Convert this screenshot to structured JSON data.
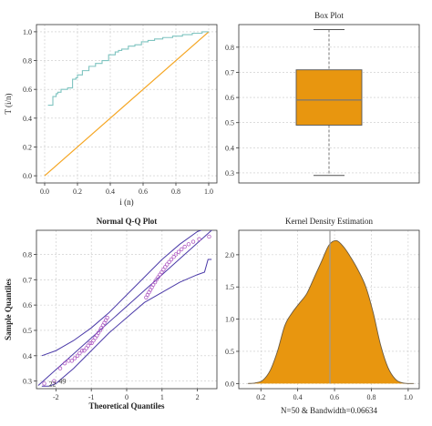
{
  "chart_data": [
    {
      "type": "line",
      "panel": "ttt",
      "xlabel": "i (n)",
      "ylabel": "T (i/n)",
      "xlim": [
        -0.05,
        1.05
      ],
      "ylim": [
        -0.05,
        1.05
      ],
      "xticks": [
        "0.0",
        "0.2",
        "0.4",
        "0.6",
        "0.8",
        "1.0"
      ],
      "yticks": [
        "0.0",
        "0.2",
        "0.4",
        "0.6",
        "0.8",
        "1.0"
      ],
      "grid": true,
      "colors": {
        "curve": "#7fc4c0",
        "diagonal": "#f5a623"
      },
      "series": [
        {
          "role": "curve",
          "x": [
            0.02,
            0.04,
            0.05,
            0.07,
            0.08,
            0.09,
            0.1,
            0.12,
            0.14,
            0.15,
            0.17,
            0.19,
            0.2,
            0.21,
            0.23,
            0.25,
            0.27,
            0.29,
            0.31,
            0.33,
            0.35,
            0.37,
            0.39,
            0.41,
            0.43,
            0.45,
            0.47,
            0.49,
            0.51,
            0.53,
            0.55,
            0.57,
            0.59,
            0.61,
            0.63,
            0.65,
            0.67,
            0.69,
            0.72,
            0.75,
            0.78,
            0.81,
            0.84,
            0.87,
            0.9,
            0.93,
            0.96,
            0.98,
            1.0
          ],
          "y": [
            0.49,
            0.49,
            0.55,
            0.57,
            0.58,
            0.58,
            0.6,
            0.6,
            0.61,
            0.61,
            0.67,
            0.68,
            0.7,
            0.7,
            0.73,
            0.73,
            0.76,
            0.76,
            0.78,
            0.78,
            0.8,
            0.8,
            0.84,
            0.84,
            0.86,
            0.87,
            0.88,
            0.88,
            0.9,
            0.9,
            0.91,
            0.91,
            0.93,
            0.93,
            0.94,
            0.94,
            0.95,
            0.95,
            0.96,
            0.96,
            0.97,
            0.97,
            0.98,
            0.98,
            0.99,
            0.99,
            1.0,
            1.0,
            1.0
          ]
        },
        {
          "role": "diagonal",
          "x": [
            0,
            1
          ],
          "y": [
            0,
            1
          ]
        }
      ]
    },
    {
      "type": "box",
      "panel": "box",
      "title": "Box Plot",
      "ylim": [
        0.26,
        0.89
      ],
      "yticks": [
        "0.3",
        "0.4",
        "0.5",
        "0.6",
        "0.7",
        "0.8"
      ],
      "grid": true,
      "colors": {
        "box": "#e8960f",
        "edge": "#555555"
      },
      "min": 0.29,
      "q1": 0.49,
      "median": 0.59,
      "q3": 0.71,
      "max": 0.87
    },
    {
      "type": "scatter",
      "panel": "qq",
      "title": "Normal Q-Q Plot",
      "xlabel": "Theoretical Quantiles",
      "ylabel": "Sample Quantiles",
      "xlim": [
        -2.55,
        2.55
      ],
      "ylim": [
        0.27,
        0.895
      ],
      "xticks": [
        "-2",
        "-1",
        "0",
        "1",
        "2"
      ],
      "yticks": [
        "0.3",
        "0.4",
        "0.5",
        "0.6",
        "0.7",
        "0.8"
      ],
      "grid": true,
      "colors": {
        "points": "#b05cc4",
        "band": "#4b3aa8"
      },
      "x": [
        -2.33,
        -2.05,
        -1.88,
        -1.75,
        -1.64,
        -1.55,
        -1.47,
        -1.39,
        -1.33,
        -1.26,
        -1.2,
        -1.14,
        -1.09,
        -1.04,
        -0.99,
        -0.94,
        -0.89,
        -0.84,
        -0.8,
        -0.75,
        -0.71,
        -0.67,
        -0.63,
        -0.59,
        -0.55,
        0.55,
        0.59,
        0.63,
        0.67,
        0.71,
        0.75,
        0.8,
        0.84,
        0.89,
        0.94,
        0.99,
        1.04,
        1.09,
        1.14,
        1.2,
        1.26,
        1.33,
        1.39,
        1.47,
        1.55,
        1.64,
        1.75,
        1.88,
        2.05,
        2.33
      ],
      "y": [
        0.29,
        0.3,
        0.35,
        0.37,
        0.38,
        0.38,
        0.39,
        0.4,
        0.41,
        0.42,
        0.42,
        0.43,
        0.44,
        0.45,
        0.45,
        0.46,
        0.47,
        0.48,
        0.49,
        0.5,
        0.51,
        0.52,
        0.53,
        0.54,
        0.55,
        0.63,
        0.64,
        0.65,
        0.66,
        0.67,
        0.68,
        0.69,
        0.7,
        0.71,
        0.72,
        0.73,
        0.74,
        0.75,
        0.76,
        0.77,
        0.78,
        0.79,
        0.8,
        0.81,
        0.82,
        0.83,
        0.84,
        0.85,
        0.86,
        0.87
      ],
      "band_upper": {
        "x": [
          -2.4,
          -2.0,
          -1.5,
          -1.0,
          -0.5,
          0.0,
          0.5,
          1.0,
          1.5,
          2.0,
          2.2,
          2.3,
          2.4
        ],
        "y": [
          0.4,
          0.42,
          0.46,
          0.51,
          0.57,
          0.64,
          0.71,
          0.78,
          0.84,
          0.89,
          0.9,
          0.9,
          0.9
        ]
      },
      "band_lower": {
        "x": [
          -2.4,
          -2.2,
          -2.0,
          -1.5,
          -1.0,
          -0.5,
          0.0,
          0.5,
          1.0,
          1.5,
          2.0,
          2.2,
          2.3,
          2.4
        ],
        "y": [
          0.28,
          0.28,
          0.29,
          0.35,
          0.42,
          0.49,
          0.55,
          0.61,
          0.65,
          0.69,
          0.72,
          0.73,
          0.78,
          0.78
        ]
      },
      "annotations": [
        {
          "label": "22",
          "x": -2.33,
          "y": 0.29
        },
        {
          "label": "49",
          "x": -2.05,
          "y": 0.3
        }
      ]
    },
    {
      "type": "area",
      "panel": "kde",
      "title": "Kernel Density Estimation",
      "xlabel": "N=50 & Bandwidth=0.06634",
      "xlim": [
        0.08,
        1.06
      ],
      "ylim": [
        -0.08,
        2.38
      ],
      "xticks": [
        "0.2",
        "0.4",
        "0.6",
        "0.8",
        "1.0"
      ],
      "yticks": [
        "0.0",
        "0.5",
        "1.0",
        "1.5",
        "2.0"
      ],
      "grid": true,
      "colors": {
        "fill": "#e8960f",
        "edge": "#6b5a40",
        "mean_line": "#9a9a9a"
      },
      "mean_line_x": 0.575,
      "x": [
        0.13,
        0.17,
        0.21,
        0.25,
        0.29,
        0.33,
        0.37,
        0.41,
        0.45,
        0.49,
        0.53,
        0.57,
        0.61,
        0.65,
        0.69,
        0.73,
        0.77,
        0.81,
        0.85,
        0.89,
        0.93,
        0.97,
        1.03
      ],
      "y": [
        0.0,
        0.01,
        0.05,
        0.2,
        0.5,
        0.9,
        1.1,
        1.25,
        1.4,
        1.65,
        1.9,
        2.15,
        2.22,
        2.12,
        1.95,
        1.75,
        1.5,
        1.1,
        0.6,
        0.25,
        0.07,
        0.01,
        0.0
      ]
    }
  ]
}
